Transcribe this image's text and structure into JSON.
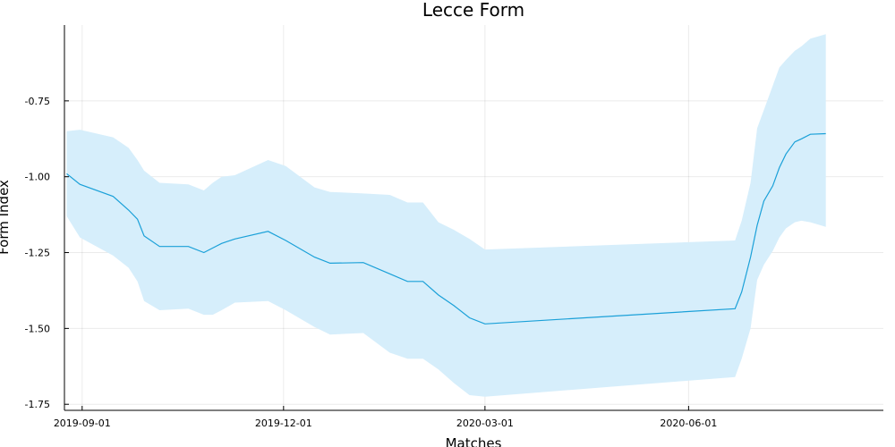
{
  "chart_data": {
    "type": "line",
    "title": "Lecce Form",
    "xlabel": "Matches",
    "ylabel": "Form Index",
    "x_ticks": [
      "2019-09-01",
      "2019-12-01",
      "2020-03-01",
      "2020-06-01"
    ],
    "y_ticks": [
      -0.75,
      -1.0,
      -1.25,
      -1.5,
      -1.75
    ],
    "y_tick_labels": [
      "-0.75",
      "-1.00",
      "-1.25",
      "-1.50",
      "-1.75"
    ],
    "xlim": [
      "2019-08-24",
      "2020-08-28"
    ],
    "ylim": [
      -1.77,
      -0.5
    ],
    "grid": true,
    "legend": "none",
    "colors": {
      "line": "#1aa0d8",
      "band": "#d6eefb",
      "axis": "#000000"
    },
    "series": [
      {
        "x": [
          "2019-08-25",
          "2019-08-31",
          "2019-09-15",
          "2019-09-22",
          "2019-09-26",
          "2019-09-29",
          "2019-10-06",
          "2019-10-19",
          "2019-10-26",
          "2019-10-30",
          "2019-11-03",
          "2019-11-09",
          "2019-11-24",
          "2019-12-02",
          "2019-12-15",
          "2019-12-22",
          "2020-01-06",
          "2020-01-18",
          "2020-01-26",
          "2020-02-02",
          "2020-02-09",
          "2020-02-16",
          "2020-02-23",
          "2020-03-01",
          "2020-06-22",
          "2020-06-25",
          "2020-06-29",
          "2020-07-02",
          "2020-07-05",
          "2020-07-09",
          "2020-07-12",
          "2020-07-15",
          "2020-07-19",
          "2020-07-22",
          "2020-07-26",
          "2020-08-02"
        ],
        "y": [
          -0.99,
          -1.025,
          -1.065,
          -1.11,
          -1.14,
          -1.195,
          -1.23,
          -1.23,
          -1.25,
          -1.235,
          -1.22,
          -1.205,
          -1.18,
          -1.21,
          -1.265,
          -1.285,
          -1.283,
          -1.32,
          -1.345,
          -1.345,
          -1.39,
          -1.425,
          -1.465,
          -1.485,
          -1.435,
          -1.38,
          -1.265,
          -1.16,
          -1.08,
          -1.03,
          -0.97,
          -0.925,
          -0.885,
          -0.875,
          -0.86,
          -0.858
        ],
        "lower": [
          -1.13,
          -1.2,
          -1.26,
          -1.3,
          -1.345,
          -1.41,
          -1.44,
          -1.435,
          -1.455,
          -1.455,
          -1.44,
          -1.415,
          -1.41,
          -1.44,
          -1.495,
          -1.52,
          -1.515,
          -1.58,
          -1.6,
          -1.6,
          -1.635,
          -1.68,
          -1.72,
          -1.725,
          -1.66,
          -1.6,
          -1.5,
          -1.34,
          -1.29,
          -1.245,
          -1.2,
          -1.17,
          -1.15,
          -1.145,
          -1.15,
          -1.165
        ],
        "upper": [
          -0.85,
          -0.845,
          -0.87,
          -0.905,
          -0.945,
          -0.98,
          -1.02,
          -1.025,
          -1.045,
          -1.02,
          -1.0,
          -0.995,
          -0.945,
          -0.965,
          -1.035,
          -1.05,
          -1.055,
          -1.06,
          -1.085,
          -1.085,
          -1.15,
          -1.175,
          -1.205,
          -1.24,
          -1.21,
          -1.145,
          -1.02,
          -0.84,
          -0.78,
          -0.7,
          -0.64,
          -0.615,
          -0.585,
          -0.57,
          -0.545,
          -0.53
        ]
      }
    ]
  }
}
